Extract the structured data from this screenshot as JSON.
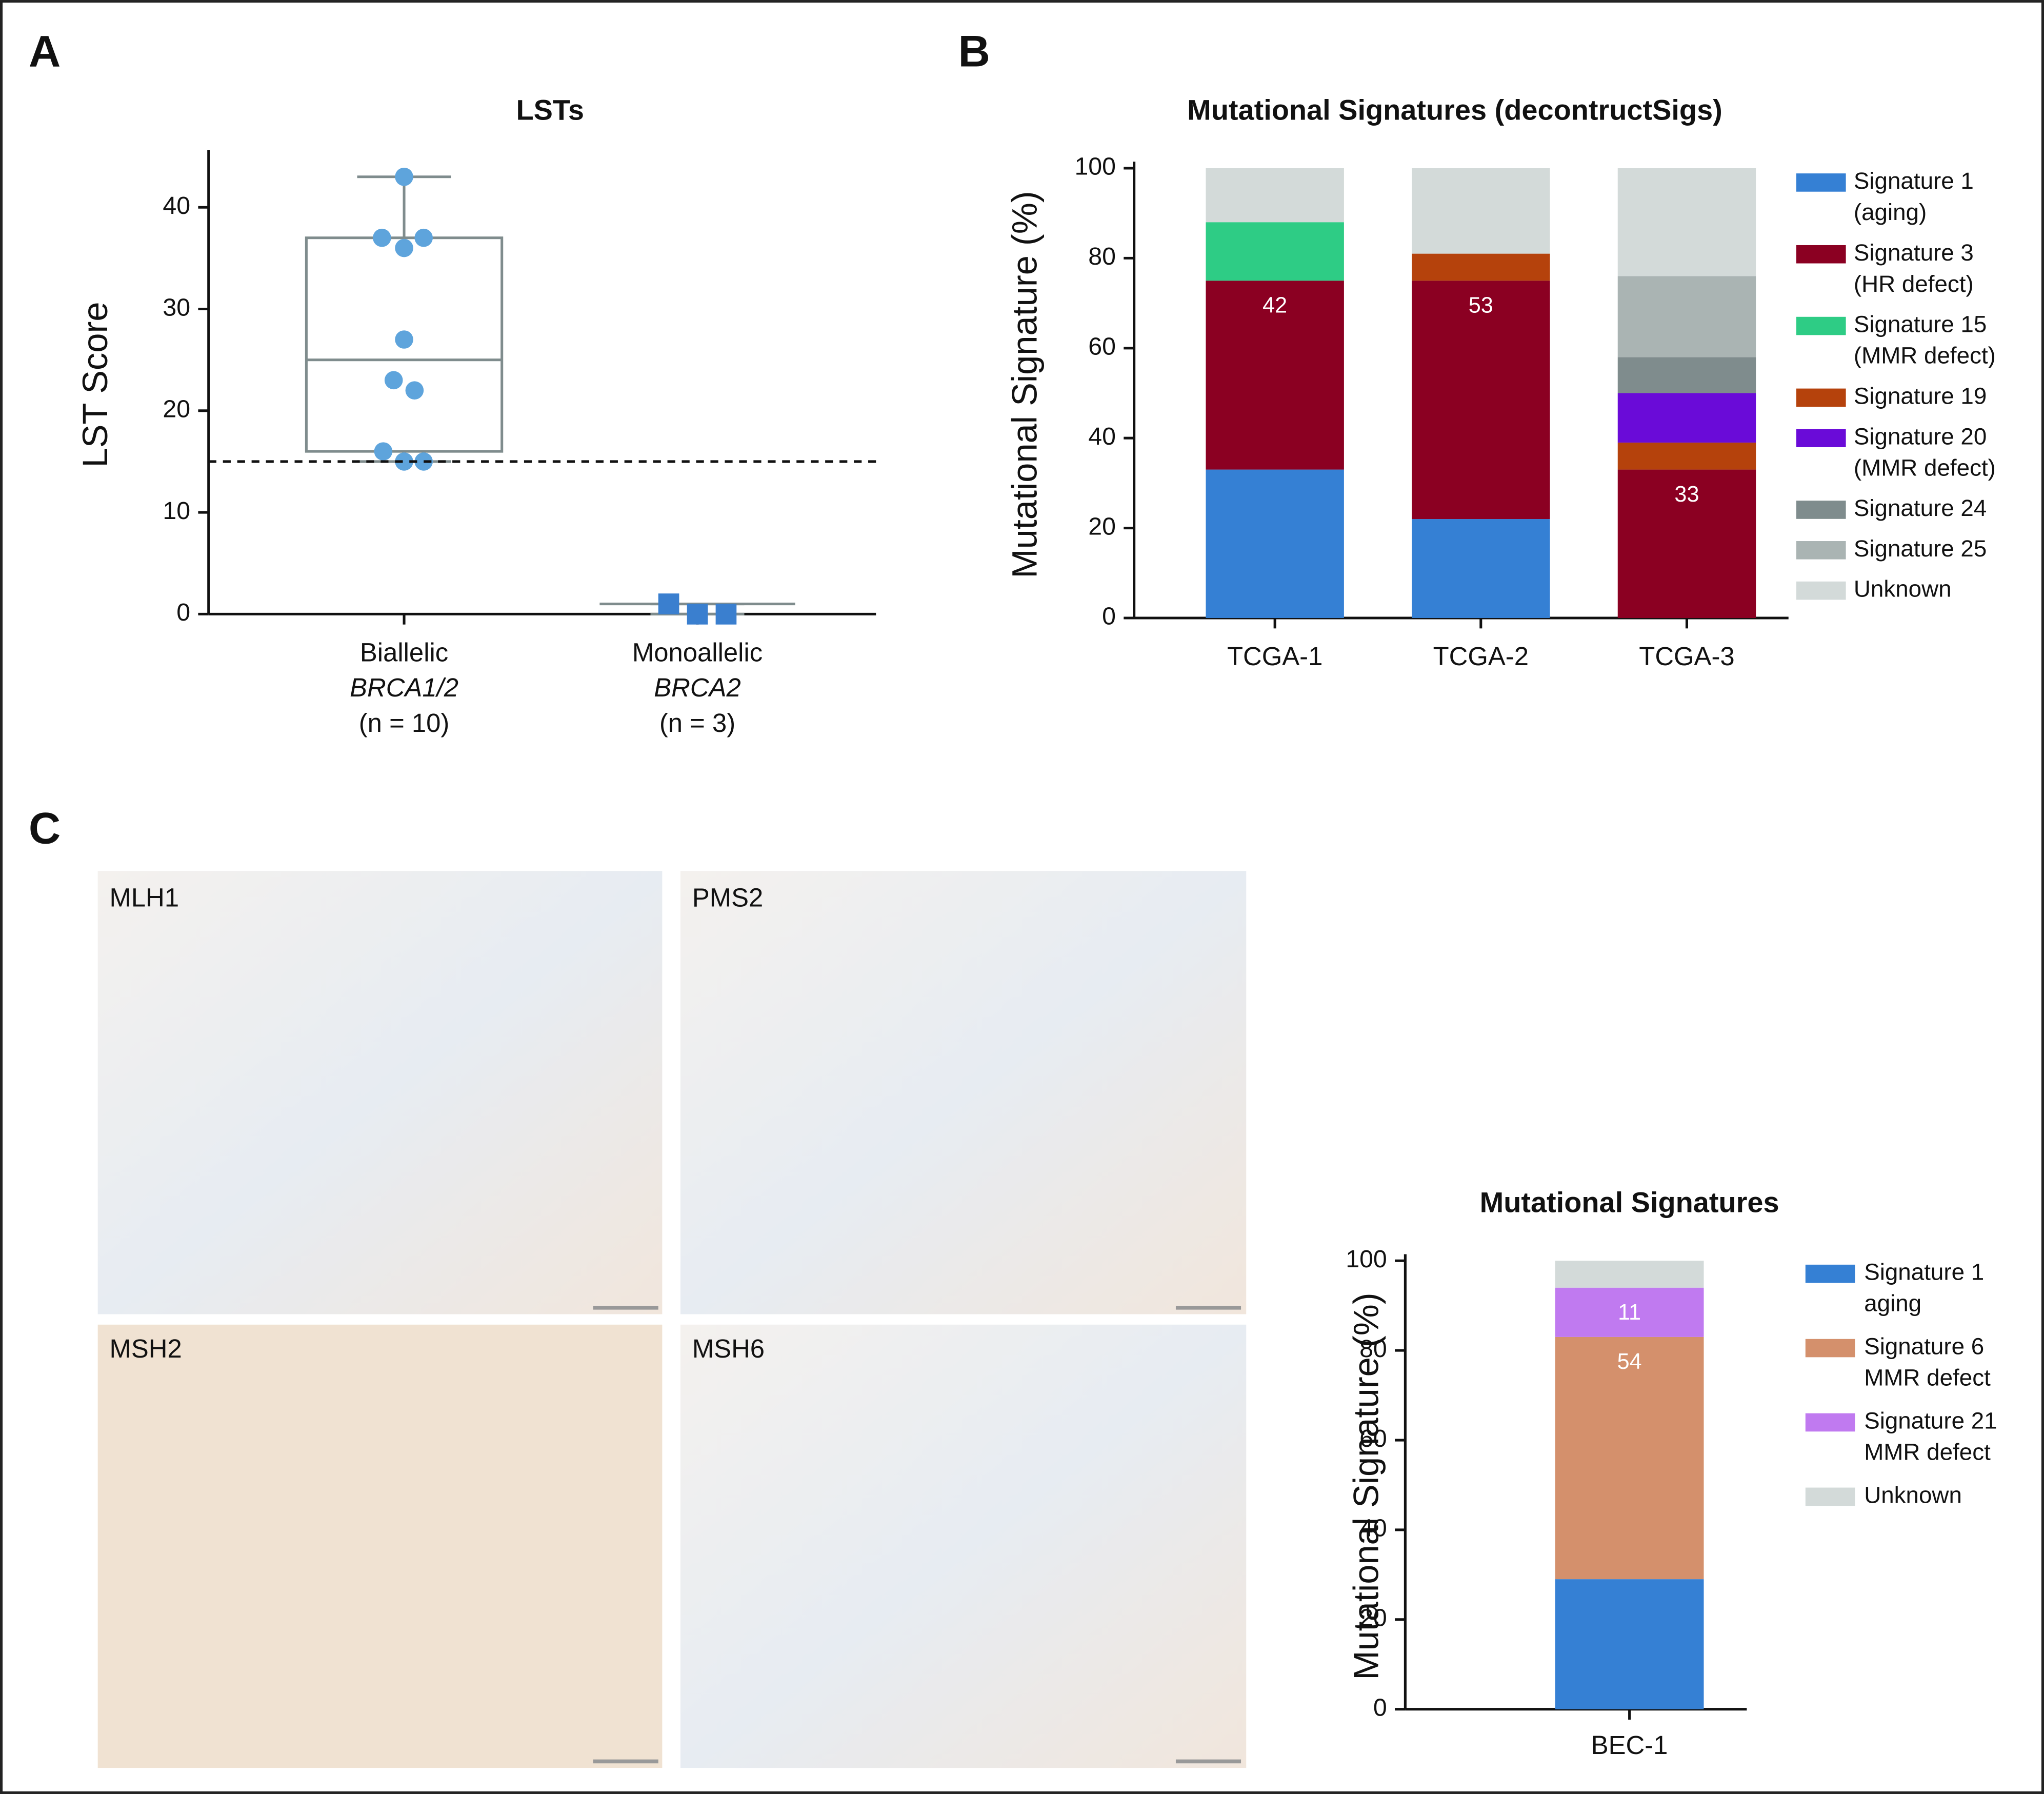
{
  "panel_labels": [
    "A",
    "B",
    "C"
  ],
  "images": [
    {
      "label": "MLH1"
    },
    {
      "label": "PMS2"
    },
    {
      "label": "MSH2"
    },
    {
      "label": "MSH6"
    }
  ],
  "chart_data": [
    {
      "type": "box",
      "title": "LSTs",
      "ylabel": "LST Score",
      "categories": [
        [
          "Biallelic",
          "BRCA1/2",
          "(n = 10)"
        ],
        [
          "Monoallelic",
          "BRCA2",
          "(n = 3)"
        ]
      ],
      "groups": [
        {
          "marker": "circle",
          "color": "#5ea4dc",
          "points": [
            43,
            37,
            36,
            37,
            27,
            23,
            22,
            16,
            15,
            15
          ],
          "box": {
            "min": 15,
            "q1": 16,
            "median": 25,
            "q3": 37,
            "max": 43
          }
        },
        {
          "marker": "square",
          "color": "#3a7fcf",
          "points": [
            1,
            0,
            0
          ],
          "box": {
            "min": 0,
            "q1": 1,
            "median": 1,
            "q3": 1,
            "max": 1
          }
        }
      ],
      "threshold": 15,
      "ylim": [
        0,
        45
      ],
      "yticks": [
        0,
        10,
        20,
        30,
        40
      ]
    },
    {
      "type": "bar",
      "stacked": true,
      "title": "Mutational Signatures (decontructSigs)",
      "ylabel": "Mutational Signature (%)",
      "categories": [
        "TCGA-1",
        "TCGA-2",
        "TCGA-3"
      ],
      "series": [
        {
          "name": [
            "Signature 1",
            "(aging)"
          ],
          "color": "#3580d4",
          "values": [
            33,
            22,
            0
          ]
        },
        {
          "name": [
            "Signature 3",
            "(HR defect)"
          ],
          "color": "#8b0022",
          "values": [
            42,
            53,
            33
          ],
          "show_values": true
        },
        {
          "name": [
            "Signature 15",
            "(MMR defect)"
          ],
          "color": "#2ecc85",
          "values": [
            13,
            0,
            0
          ]
        },
        {
          "name": [
            "Signature 19"
          ],
          "color": "#b5420c",
          "values": [
            0,
            6,
            6
          ]
        },
        {
          "name": [
            "Signature 20",
            "(MMR defect)"
          ],
          "color": "#6a0bd8",
          "values": [
            0,
            0,
            11
          ]
        },
        {
          "name": [
            "Signature 24"
          ],
          "color": "#7f8c8d",
          "values": [
            0,
            0,
            8
          ]
        },
        {
          "name": [
            "Signature 25"
          ],
          "color": "#aab4b3",
          "values": [
            0,
            0,
            18
          ]
        },
        {
          "name": [
            "Unknown"
          ],
          "color": "#d3dad9",
          "values": [
            12,
            19,
            24
          ]
        }
      ],
      "ylim": [
        0,
        100
      ],
      "yticks": [
        0,
        20,
        40,
        60,
        80,
        100
      ]
    },
    {
      "type": "bar",
      "stacked": true,
      "title": "Mutational Signatures",
      "ylabel": "Mutational Signature (%)",
      "categories": [
        "BEC-1"
      ],
      "series": [
        {
          "name": [
            "Signature 1",
            "aging"
          ],
          "color": "#3580d4",
          "values": [
            29
          ]
        },
        {
          "name": [
            "Signature 6",
            "MMR defect"
          ],
          "color": "#d4906c",
          "values": [
            54
          ],
          "show_values": true
        },
        {
          "name": [
            "Signature 21",
            "MMR defect"
          ],
          "color": "#c07af0",
          "values": [
            11
          ],
          "show_values": true
        },
        {
          "name": [
            "Unknown"
          ],
          "color": "#d3dad9",
          "values": [
            6
          ]
        }
      ],
      "ylim": [
        0,
        100
      ],
      "yticks": [
        0,
        20,
        40,
        60,
        80,
        100
      ]
    }
  ]
}
